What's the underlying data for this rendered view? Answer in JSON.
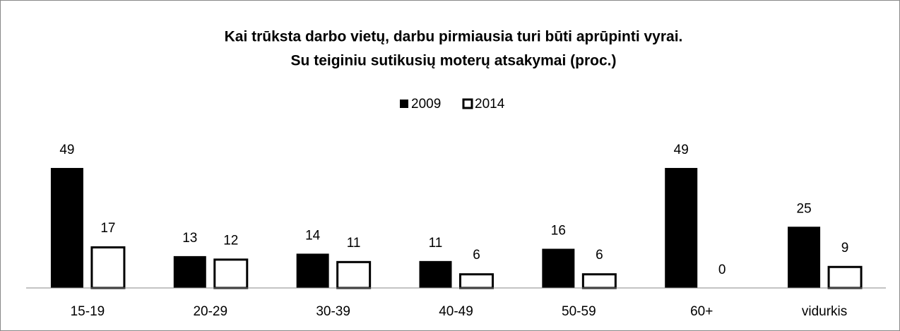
{
  "chart_data": {
    "type": "bar",
    "title": "Kai trūksta darbo vietų, darbu pirmiausia turi būti aprūpinti vyrai.",
    "subtitle": "Su teiginiu sutikusių moterų atsakymai (proc.)",
    "categories": [
      "15-19",
      "20-29",
      "30-39",
      "40-49",
      "50-59",
      "60+",
      "vidurkis"
    ],
    "series": [
      {
        "name": "2009",
        "color": "#000000",
        "values": [
          49,
          13,
          14,
          11,
          16,
          49,
          25
        ]
      },
      {
        "name": "2014",
        "color": "#ffffff",
        "values": [
          17,
          12,
          11,
          6,
          6,
          0,
          9
        ]
      }
    ],
    "ylim": [
      0,
      55
    ],
    "legend": "top"
  }
}
